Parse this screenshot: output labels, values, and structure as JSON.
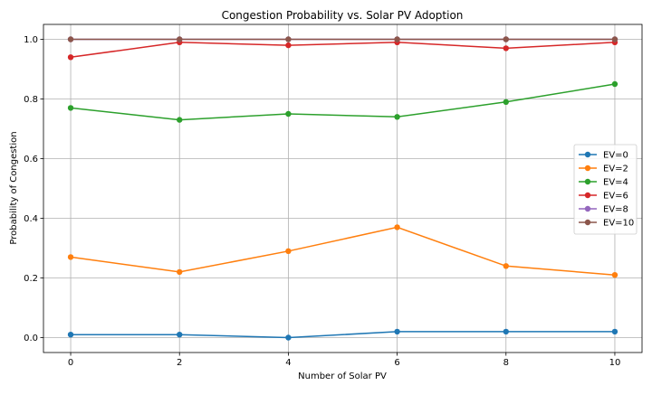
{
  "chart_data": {
    "type": "line",
    "title": "Congestion Probability vs. Solar PV Adoption",
    "xlabel": "Number of Solar PV",
    "ylabel": "Probability of Congestion",
    "x": [
      0,
      2,
      4,
      6,
      8,
      10
    ],
    "xlim": [
      -0.5,
      10.5
    ],
    "ylim": [
      -0.05,
      1.05
    ],
    "xticks": [
      "0",
      "2",
      "4",
      "6",
      "8",
      "10"
    ],
    "yticks": [
      "0.0",
      "0.2",
      "0.4",
      "0.6",
      "0.8",
      "1.0"
    ],
    "grid": true,
    "legend_position": "center-right",
    "series": [
      {
        "name": "EV=0",
        "color": "#1f77b4",
        "values": [
          0.01,
          0.01,
          0.0,
          0.02,
          0.02,
          0.02
        ]
      },
      {
        "name": "EV=2",
        "color": "#ff7f0e",
        "values": [
          0.27,
          0.22,
          0.29,
          0.37,
          0.24,
          0.21
        ]
      },
      {
        "name": "EV=4",
        "color": "#2ca02c",
        "values": [
          0.77,
          0.73,
          0.75,
          0.74,
          0.79,
          0.85
        ]
      },
      {
        "name": "EV=6",
        "color": "#d62728",
        "values": [
          0.94,
          0.99,
          0.98,
          0.99,
          0.97,
          0.99
        ]
      },
      {
        "name": "EV=8",
        "color": "#9467bd",
        "values": [
          1.0,
          1.0,
          1.0,
          1.0,
          1.0,
          1.0
        ]
      },
      {
        "name": "EV=10",
        "color": "#8c564b",
        "values": [
          1.0,
          1.0,
          1.0,
          1.0,
          1.0,
          1.0
        ]
      }
    ]
  }
}
